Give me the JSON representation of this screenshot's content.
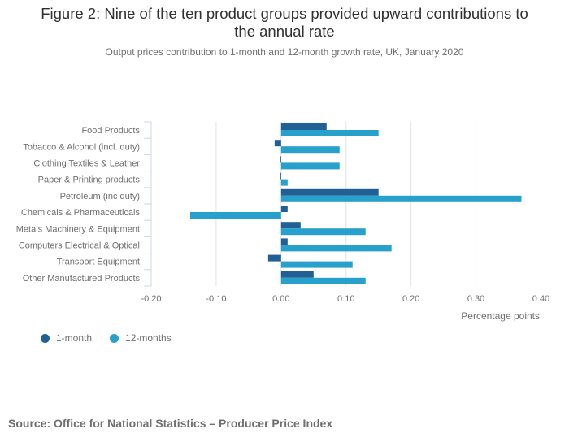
{
  "chart_data": {
    "type": "bar",
    "orientation": "horizontal",
    "title": "Figure 2: Nine of the ten product groups provided upward contributions to the annual rate",
    "title_lines": [
      "Figure 2: Nine of the ten product groups provided upward contributions to",
      "the annual rate"
    ],
    "subtitle": "Output prices contribution to 1-month and 12-month growth rate, UK, January 2020",
    "categories": [
      "Food Products",
      "Tobacco & Alcohol (incl. duty)",
      "Clothing Textiles & Leather",
      "Paper & Printing products",
      "Petroleum (inc duty)",
      "Chemicals & Pharmaceuticals",
      "Metals Machinery & Equipment",
      "Computers Electrical & Optical",
      "Transport Equipment",
      "Other Manufactured Products"
    ],
    "series": [
      {
        "name": "1-month",
        "color": "#206095",
        "values": [
          0.07,
          -0.01,
          0.0,
          0.0,
          0.15,
          0.01,
          0.03,
          0.01,
          -0.02,
          0.05
        ]
      },
      {
        "name": "12-months",
        "color": "#27a0cc",
        "values": [
          0.15,
          0.09,
          0.09,
          0.01,
          0.37,
          -0.14,
          0.13,
          0.17,
          0.11,
          0.13
        ]
      }
    ],
    "xlabel": "Percentage points",
    "ylabel": "",
    "xlim": [
      -0.2,
      0.4
    ],
    "xticks": [
      -0.2,
      -0.1,
      0.0,
      0.1,
      0.2,
      0.3,
      0.4
    ],
    "xtick_labels": [
      "-0.20",
      "-0.10",
      "0.00",
      "0.10",
      "0.20",
      "0.30",
      "0.40"
    ],
    "grid": true,
    "legend_position": "bottom-left"
  },
  "source": "Source: Office for National Statistics – Producer Price Index"
}
